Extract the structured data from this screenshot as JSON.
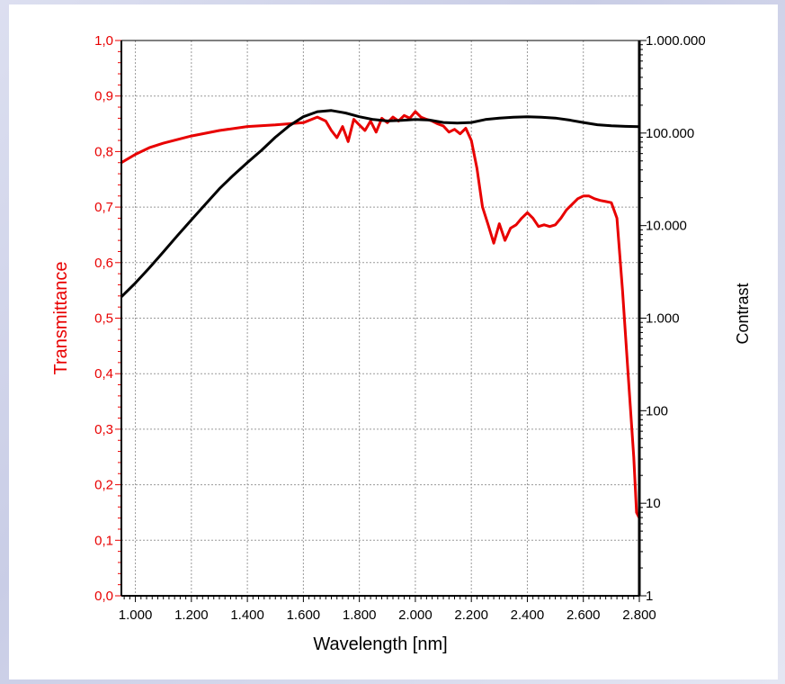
{
  "chart_data": {
    "type": "line",
    "xlabel": "Wavelength [nm]",
    "ylabel_left": "Transmittance",
    "ylabel_right": "Contrast",
    "xlim": [
      950,
      2800
    ],
    "ylim_left": [
      0.0,
      1.0
    ],
    "ylim_right": [
      1,
      1000000
    ],
    "right_axis_scale": "log",
    "grid": true,
    "x_ticks": [
      {
        "value": 1000,
        "label": "1.000"
      },
      {
        "value": 1200,
        "label": "1.200"
      },
      {
        "value": 1400,
        "label": "1.400"
      },
      {
        "value": 1600,
        "label": "1.600"
      },
      {
        "value": 1800,
        "label": "1.800"
      },
      {
        "value": 2000,
        "label": "2.000"
      },
      {
        "value": 2200,
        "label": "2.200"
      },
      {
        "value": 2400,
        "label": "2.400"
      },
      {
        "value": 2600,
        "label": "2.600"
      },
      {
        "value": 2800,
        "label": "2.800"
      }
    ],
    "y_ticks_left": [
      {
        "value": 0.0,
        "label": "0,0"
      },
      {
        "value": 0.1,
        "label": "0,1"
      },
      {
        "value": 0.2,
        "label": "0,2"
      },
      {
        "value": 0.3,
        "label": "0,3"
      },
      {
        "value": 0.4,
        "label": "0,4"
      },
      {
        "value": 0.5,
        "label": "0,5"
      },
      {
        "value": 0.6,
        "label": "0,6"
      },
      {
        "value": 0.7,
        "label": "0,7"
      },
      {
        "value": 0.8,
        "label": "0,8"
      },
      {
        "value": 0.9,
        "label": "0,9"
      },
      {
        "value": 1.0,
        "label": "1,0"
      }
    ],
    "y_ticks_right": [
      {
        "value": 1,
        "label": "1"
      },
      {
        "value": 10,
        "label": "10"
      },
      {
        "value": 100,
        "label": "100"
      },
      {
        "value": 1000,
        "label": "1.000"
      },
      {
        "value": 10000,
        "label": "10.000"
      },
      {
        "value": 100000,
        "label": "100.000"
      },
      {
        "value": 1000000,
        "label": "1.000.000"
      }
    ],
    "colors": {
      "transmittance": "#e80000",
      "contrast": "#000000",
      "grid": "#9a9a9a"
    },
    "series": [
      {
        "axis": "left",
        "color": "#e80000",
        "x": [
          950,
          1000,
          1050,
          1100,
          1200,
          1300,
          1400,
          1500,
          1600,
          1650,
          1680,
          1700,
          1720,
          1740,
          1760,
          1780,
          1800,
          1820,
          1840,
          1860,
          1880,
          1900,
          1920,
          1940,
          1960,
          1980,
          2000,
          2020,
          2040,
          2060,
          2080,
          2100,
          2120,
          2140,
          2160,
          2180,
          2200,
          2220,
          2240,
          2260,
          2280,
          2300,
          2320,
          2340,
          2360,
          2380,
          2400,
          2420,
          2440,
          2460,
          2480,
          2500,
          2520,
          2540,
          2560,
          2580,
          2600,
          2620,
          2640,
          2660,
          2680,
          2700,
          2720,
          2740,
          2760,
          2780,
          2790,
          2800
        ],
        "y": [
          0.78,
          0.795,
          0.807,
          0.815,
          0.828,
          0.838,
          0.845,
          0.848,
          0.852,
          0.862,
          0.855,
          0.838,
          0.825,
          0.845,
          0.818,
          0.858,
          0.848,
          0.838,
          0.855,
          0.835,
          0.86,
          0.852,
          0.862,
          0.855,
          0.865,
          0.86,
          0.872,
          0.862,
          0.858,
          0.855,
          0.85,
          0.846,
          0.835,
          0.84,
          0.832,
          0.842,
          0.82,
          0.77,
          0.7,
          0.668,
          0.635,
          0.67,
          0.64,
          0.662,
          0.668,
          0.68,
          0.69,
          0.68,
          0.665,
          0.668,
          0.665,
          0.668,
          0.68,
          0.695,
          0.705,
          0.715,
          0.72,
          0.72,
          0.715,
          0.712,
          0.71,
          0.708,
          0.68,
          0.55,
          0.4,
          0.25,
          0.15,
          0.14
        ]
      },
      {
        "axis": "right",
        "color": "#000000",
        "x": [
          950,
          1000,
          1050,
          1100,
          1150,
          1200,
          1250,
          1300,
          1350,
          1400,
          1450,
          1500,
          1550,
          1600,
          1650,
          1700,
          1750,
          1800,
          1850,
          1900,
          1950,
          2000,
          2050,
          2100,
          2150,
          2200,
          2250,
          2300,
          2350,
          2400,
          2450,
          2500,
          2550,
          2600,
          2650,
          2700,
          2750,
          2800
        ],
        "y": [
          1700,
          2400,
          3500,
          5200,
          7800,
          11500,
          17000,
          25000,
          35000,
          48000,
          65000,
          90000,
          120000,
          150000,
          170000,
          175000,
          165000,
          150000,
          140000,
          135000,
          137000,
          140000,
          138000,
          130000,
          128000,
          130000,
          140000,
          145000,
          148000,
          150000,
          148000,
          145000,
          138000,
          130000,
          123000,
          120000,
          118000,
          117000
        ]
      }
    ]
  }
}
